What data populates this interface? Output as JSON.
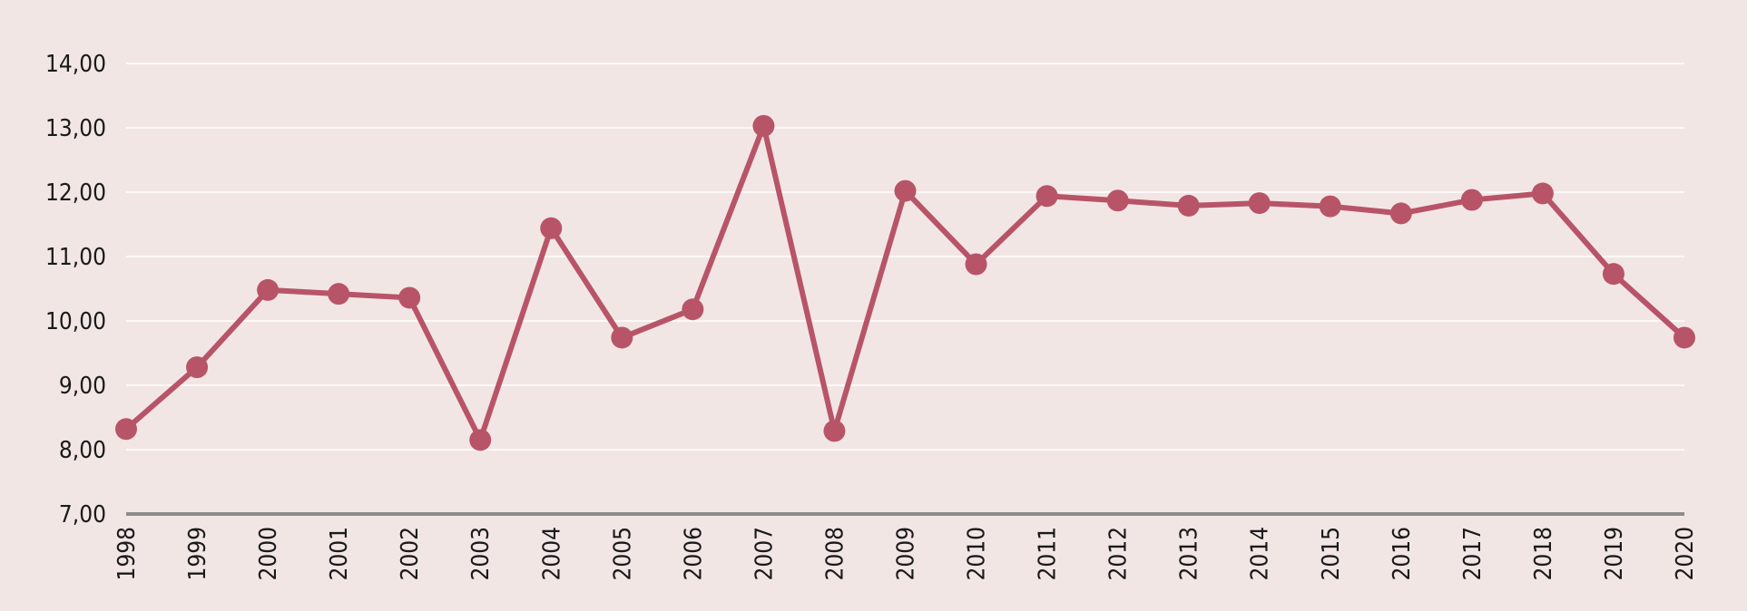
{
  "chart_data": {
    "type": "line",
    "title": "",
    "xlabel": "",
    "ylabel": "",
    "ylim": [
      7,
      14
    ],
    "y_ticks": [
      "7,00",
      "8,00",
      "9,00",
      "10,00",
      "11,00",
      "12,00",
      "13,00",
      "14,00"
    ],
    "grid": true,
    "legend": "none",
    "line_color": "#b85468",
    "axis_color": "#8c8c8c",
    "background_color": "#f2e6e5",
    "categories": [
      "1998",
      "1999",
      "2000",
      "2001",
      "2002",
      "2003",
      "2004",
      "2005",
      "2006",
      "2007",
      "2008",
      "2009",
      "2010",
      "2011",
      "2012",
      "2013",
      "2014",
      "2015",
      "2016",
      "2017",
      "2018",
      "2019",
      "2020"
    ],
    "series": [
      {
        "values": [
          8.32,
          9.28,
          10.48,
          10.42,
          10.36,
          8.15,
          11.44,
          9.74,
          10.18,
          13.03,
          8.29,
          12.02,
          10.88,
          11.94,
          11.87,
          11.79,
          11.83,
          11.78,
          11.67,
          11.88,
          11.98,
          10.73,
          9.74
        ]
      }
    ]
  }
}
